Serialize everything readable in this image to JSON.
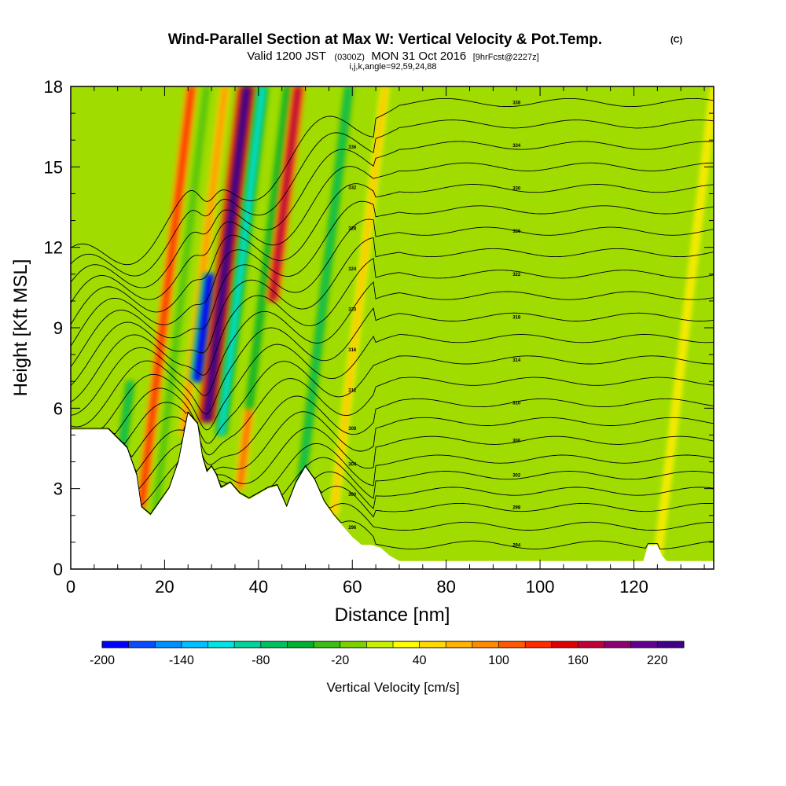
{
  "chart_data": {
    "type": "heatmap",
    "title": "Wind-Parallel Section at Max W: Vertical Velocity & Pot.Temp.",
    "title_mark": "(C)",
    "subtitle_parts": [
      "Valid 1200 JST",
      "(0300Z)",
      "MON 31 Oct 2016",
      "[9hrFcst@2227z]"
    ],
    "subtitle2": "i,j,k,angle=92,59,24,88",
    "xlabel": "Distance [nm]",
    "ylabel": "Height [Kft MSL]",
    "xlim": [
      0,
      137
    ],
    "ylim": [
      0,
      18
    ],
    "x_ticks": [
      0,
      20,
      40,
      60,
      80,
      100,
      120
    ],
    "y_ticks": [
      0,
      3,
      6,
      9,
      12,
      15,
      18
    ],
    "colorbar": {
      "label": "Vertical Velocity [cm/s]",
      "min": -200,
      "max": 240,
      "step": 20,
      "tick_labels": [
        -200,
        -140,
        -80,
        -20,
        40,
        100,
        160,
        220
      ],
      "colors": [
        "#0000ff",
        "#0a4dff",
        "#0090ff",
        "#00c0ff",
        "#00e4e4",
        "#00d49a",
        "#00c060",
        "#00b030",
        "#3cbe14",
        "#7cd200",
        "#c8f000",
        "#ffff00",
        "#ffda00",
        "#ffb400",
        "#ff8c00",
        "#ff5a00",
        "#ff2a00",
        "#e00000",
        "#c0003a",
        "#8c0070",
        "#600090",
        "#400088"
      ]
    },
    "terrain_kft": [
      [
        0,
        5.2
      ],
      [
        8,
        5.2
      ],
      [
        12,
        4.5
      ],
      [
        14,
        3.5
      ],
      [
        15,
        2.3
      ],
      [
        17,
        2
      ],
      [
        19,
        2.5
      ],
      [
        21,
        3
      ],
      [
        23,
        4
      ],
      [
        25,
        5.8
      ],
      [
        27,
        5.4
      ],
      [
        28,
        4.2
      ],
      [
        29,
        3.6
      ],
      [
        30,
        3.8
      ],
      [
        31,
        3.5
      ],
      [
        32,
        3
      ],
      [
        34,
        3.2
      ],
      [
        36,
        2.8
      ],
      [
        38,
        2.6
      ],
      [
        40,
        2.8
      ],
      [
        42,
        3
      ],
      [
        44,
        3.1
      ],
      [
        46,
        2.3
      ],
      [
        48,
        3.2
      ],
      [
        50,
        3.8
      ],
      [
        52,
        3.3
      ],
      [
        54,
        2.5
      ],
      [
        56,
        2
      ],
      [
        58,
        1.6
      ],
      [
        60,
        1.2
      ],
      [
        62,
        0.9
      ],
      [
        64,
        0.9
      ],
      [
        66,
        0.8
      ],
      [
        68,
        0.5
      ],
      [
        70,
        0.3
      ],
      [
        90,
        0.3
      ],
      [
        110,
        0.3
      ],
      [
        122,
        0.3
      ],
      [
        123,
        0.9
      ],
      [
        125,
        0.9
      ],
      [
        126,
        0.5
      ],
      [
        127,
        0.3
      ],
      [
        137,
        0.3
      ]
    ],
    "vertical_velocity_bands": [
      {
        "x": 11,
        "w": -80,
        "z_min": 4.5,
        "z_max": 7
      },
      {
        "x": 15,
        "w": 120,
        "z_min": 2.3,
        "z_max": 18
      },
      {
        "x": 18,
        "w": -40,
        "z_min": 2,
        "z_max": 18
      },
      {
        "x": 24,
        "w": 80,
        "z_min": 5,
        "z_max": 18
      },
      {
        "x": 27,
        "w": -200,
        "z_min": 7,
        "z_max": 11
      },
      {
        "x": 29,
        "w": 240,
        "z_min": 5.5,
        "z_max": 18
      },
      {
        "x": 32,
        "w": -120,
        "z_min": 5,
        "z_max": 18
      },
      {
        "x": 36,
        "w": 100,
        "z_min": 3,
        "z_max": 6
      },
      {
        "x": 38,
        "w": -60,
        "z_min": 6,
        "z_max": 18
      },
      {
        "x": 43,
        "w": 160,
        "z_min": 10,
        "z_max": 18
      },
      {
        "x": 49,
        "w": -80,
        "z_min": 3,
        "z_max": 18
      },
      {
        "x": 56,
        "w": 60,
        "z_min": 2,
        "z_max": 18
      },
      {
        "x": 125,
        "w": 40,
        "z_min": 0.3,
        "z_max": 18
      }
    ],
    "theta_contours_K": [
      {
        "value": 294,
        "label": "294",
        "z_right": 0.9
      },
      {
        "value": 296,
        "label": "296",
        "z_right": 1.6
      },
      {
        "value": 298,
        "label": "298",
        "z_right": 2.3
      },
      {
        "value": 300,
        "label": "300",
        "z_right": 2.9
      },
      {
        "value": 302,
        "label": "302",
        "z_right": 3.5
      },
      {
        "value": 304,
        "label": "304",
        "z_right": 4.1
      },
      {
        "value": 306,
        "label": "306",
        "z_right": 4.8
      },
      {
        "value": 308,
        "label": "308",
        "z_right": 5.5
      },
      {
        "value": 310,
        "label": "310",
        "z_right": 6.2
      },
      {
        "value": 312,
        "label": "312",
        "z_right": 7.0
      },
      {
        "value": 314,
        "label": "314",
        "z_right": 7.8
      },
      {
        "value": 316,
        "label": "316",
        "z_right": 8.6
      },
      {
        "value": 318,
        "label": "318",
        "z_right": 9.4
      },
      {
        "value": 320,
        "label": "320",
        "z_right": 10.2
      },
      {
        "value": 322,
        "label": "322",
        "z_right": 11.0
      },
      {
        "value": 324,
        "label": "324",
        "z_right": 11.8
      },
      {
        "value": 326,
        "label": "326",
        "z_right": 12.6
      },
      {
        "value": 328,
        "label": "328",
        "z_right": 13.4
      },
      {
        "value": 330,
        "label": "330",
        "z_right": 14.2
      },
      {
        "value": 332,
        "label": "332",
        "z_right": 15.0
      },
      {
        "value": 334,
        "label": "334",
        "z_right": 15.8
      },
      {
        "value": 336,
        "label": "336",
        "z_right": 16.6
      },
      {
        "value": 338,
        "label": "338",
        "z_right": 17.4
      }
    ]
  }
}
